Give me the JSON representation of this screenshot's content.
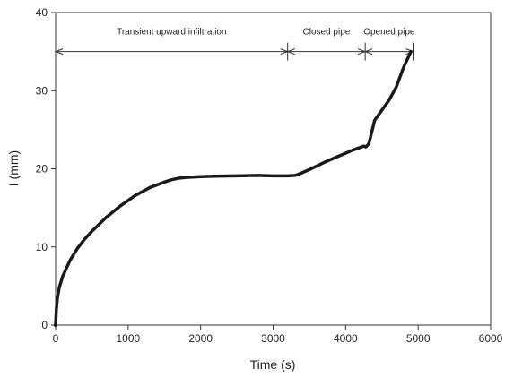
{
  "chart_data": {
    "type": "line",
    "xlabel": "Time (s)",
    "ylabel": "I (mm)",
    "xlim": [
      0,
      6000
    ],
    "ylim": [
      0,
      40
    ],
    "xticks": [
      "0",
      "1000",
      "2000",
      "3000",
      "4000",
      "5000",
      "6000"
    ],
    "yticks": [
      "0",
      "10",
      "20",
      "30",
      "40"
    ],
    "grid": false,
    "colors": {
      "series": "#1a1a1a",
      "axes": "#333333"
    },
    "series": [
      {
        "x": [
          0,
          10,
          25,
          50,
          100,
          200,
          300,
          400,
          500,
          700,
          900,
          1100,
          1300,
          1500,
          1600,
          1700,
          1800,
          2000,
          2200,
          2500,
          2800,
          3000,
          3100,
          3200,
          3300,
          3350,
          3500,
          3700,
          3900,
          4100,
          4250,
          4280,
          4320,
          4400,
          4500,
          4600,
          4700,
          4800,
          4900
        ],
        "y": [
          0,
          2,
          3.5,
          4.8,
          6.3,
          8.3,
          9.8,
          11.0,
          12.0,
          13.8,
          15.3,
          16.6,
          17.6,
          18.3,
          18.6,
          18.8,
          18.9,
          19.0,
          19.05,
          19.1,
          19.15,
          19.1,
          19.1,
          19.1,
          19.15,
          19.3,
          19.9,
          20.8,
          21.6,
          22.4,
          22.9,
          22.8,
          23.2,
          26.2,
          27.5,
          28.8,
          30.5,
          33.0,
          35.0
        ]
      }
    ],
    "annotations": [
      {
        "label": "Transient upward infiltration",
        "x_start": 0,
        "x_end": 3200,
        "y": 35
      },
      {
        "label": "Closed pipe",
        "x_start": 3200,
        "x_end": 4270,
        "y": 35
      },
      {
        "label": "Opened pipe",
        "x_start": 4270,
        "x_end": 4930,
        "y": 35
      }
    ],
    "annotation_boundaries": [
      0,
      3200,
      4270,
      4930
    ]
  }
}
